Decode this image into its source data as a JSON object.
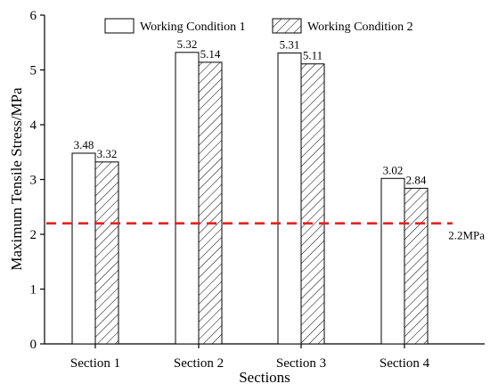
{
  "chart_data": {
    "type": "bar",
    "categories": [
      "Section 1",
      "Section 2",
      "Section 3",
      "Section 4"
    ],
    "series": [
      {
        "name": "Working Condition 1",
        "values": [
          3.48,
          5.32,
          5.31,
          3.02
        ],
        "labels": [
          "3.48",
          "5.32",
          "5.31",
          "3.02"
        ],
        "pattern": "none"
      },
      {
        "name": "Working Condition 2",
        "values": [
          3.32,
          5.14,
          5.11,
          2.84
        ],
        "labels": [
          "3.32",
          "5.14",
          "5.11",
          "2.84"
        ],
        "pattern": "diagonal-hatch"
      }
    ],
    "xlabel": "Sections",
    "ylabel": "Maximum Tensile Stress/MPa",
    "ylim": [
      0,
      6
    ],
    "yticks": [
      "0",
      "1",
      "2",
      "3",
      "4",
      "5",
      "6"
    ],
    "reference_line": {
      "value": 2.2,
      "label": "2.2MPa",
      "color": "#e8211e",
      "style": "dashed"
    },
    "grid": false,
    "legend_position": "top"
  }
}
